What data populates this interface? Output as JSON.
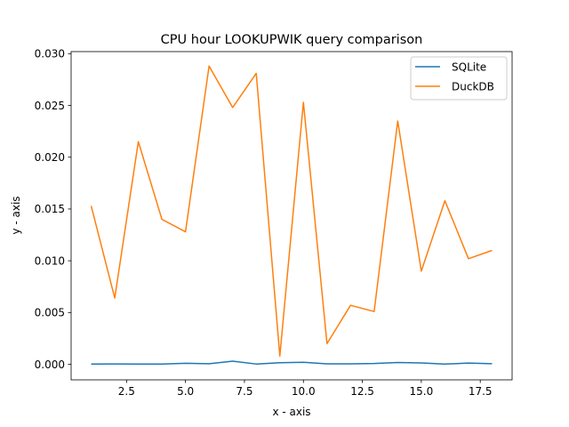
{
  "chart_data": {
    "type": "line",
    "title": "CPU hour LOOKUPWIK query comparison",
    "xlabel": "x - axis",
    "ylabel": "y - axis",
    "xlim": [
      0.15,
      18.85
    ],
    "ylim": [
      -0.0015,
      0.0302
    ],
    "xticks": [
      2.5,
      5.0,
      7.5,
      10.0,
      12.5,
      15.0,
      17.5
    ],
    "xtick_labels": [
      "2.5",
      "5.0",
      "7.5",
      "10.0",
      "12.5",
      "15.0",
      "17.5"
    ],
    "yticks": [
      0.0,
      0.005,
      0.01,
      0.015,
      0.02,
      0.025,
      0.03
    ],
    "ytick_labels": [
      "0.000",
      "0.005",
      "0.010",
      "0.015",
      "0.020",
      "0.025",
      "0.030"
    ],
    "grid": false,
    "legend_position": "top-right",
    "x": [
      1,
      2,
      3,
      4,
      5,
      6,
      7,
      8,
      9,
      10,
      11,
      12,
      13,
      14,
      15,
      16,
      17,
      18
    ],
    "series": [
      {
        "name": "SQLite",
        "color": "#1f77b4",
        "values": [
          2e-05,
          4e-05,
          3e-05,
          3e-05,
          0.0001,
          6e-05,
          0.0003,
          3e-05,
          0.00015,
          0.0002,
          5e-05,
          5e-05,
          8e-05,
          0.00018,
          0.00013,
          2e-05,
          0.00012,
          6e-05
        ]
      },
      {
        "name": "DuckDB",
        "color": "#ff7f0e",
        "values": [
          0.0153,
          0.0064,
          0.0215,
          0.014,
          0.0128,
          0.0288,
          0.0248,
          0.0281,
          0.0008,
          0.0253,
          0.002,
          0.0057,
          0.0051,
          0.0235,
          0.009,
          0.0158,
          0.0102,
          0.011
        ]
      }
    ]
  }
}
